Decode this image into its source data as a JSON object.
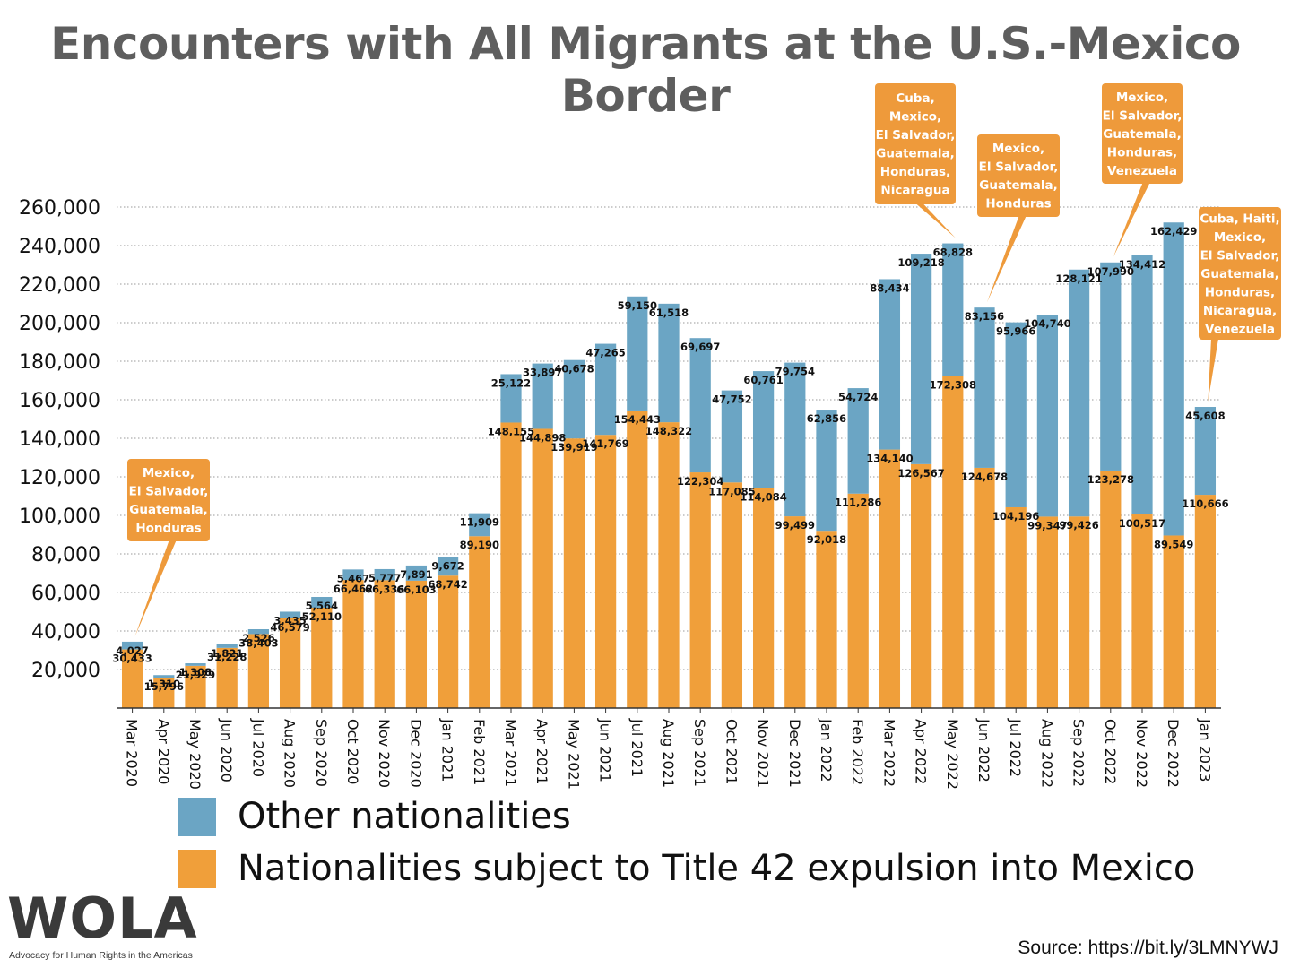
{
  "title": "Encounters with All Migrants at the U.S.-Mexico Border",
  "legend": {
    "other": "Other nationalities",
    "t42": "Nationalities subject to Title 42 expulsion into Mexico"
  },
  "logo": {
    "name": "WOLA",
    "tagline": "Advocacy for Human Rights in the Americas"
  },
  "source": "Source: https://bit.ly/3LMNYWJ",
  "colors": {
    "other": "#6ba5c4",
    "t42": "#f09f3a",
    "callout": "#ee9a3b",
    "axis": "#333333",
    "grid": "#999999"
  },
  "chart_data": {
    "type": "bar",
    "stacked": true,
    "ylim": [
      0,
      260000
    ],
    "yticks": [
      20000,
      40000,
      60000,
      80000,
      100000,
      120000,
      140000,
      160000,
      180000,
      200000,
      220000,
      240000,
      260000
    ],
    "ytick_labels": [
      "20,000",
      "40,000",
      "60,000",
      "80,000",
      "100,000",
      "120,000",
      "140,000",
      "160,000",
      "180,000",
      "200,000",
      "220,000",
      "240,000",
      "260,000"
    ],
    "grid": "horizontal dotted",
    "legend_position": "bottom",
    "categories": [
      "Mar 2020",
      "Apr 2020",
      "May 2020",
      "Jun 2020",
      "Jul 2020",
      "Aug 2020",
      "Sep 2020",
      "Oct 2020",
      "Nov 2020",
      "Dec 2020",
      "Jan 2021",
      "Feb 2021",
      "Mar 2021",
      "Apr 2021",
      "May 2021",
      "Jun 2021",
      "Jul 2021",
      "Aug 2021",
      "Sep 2021",
      "Oct 2021",
      "Nov 2021",
      "Dec 2021",
      "Jan 2022",
      "Feb 2022",
      "Mar 2022",
      "Apr 2022",
      "May 2022",
      "Jun 2022",
      "Jul 2022",
      "Aug 2022",
      "Sep 2022",
      "Oct 2022",
      "Nov 2022",
      "Dec 2022",
      "Jan 2023"
    ],
    "series": [
      {
        "name": "Nationalities subject to Title 42 expulsion into Mexico",
        "values": [
          30433,
          15796,
          21929,
          31228,
          38403,
          46579,
          52110,
          66462,
          66336,
          66103,
          68742,
          89190,
          148155,
          144898,
          139919,
          141769,
          154443,
          148322,
          122304,
          117085,
          114084,
          99499,
          92018,
          111286,
          134140,
          126567,
          172308,
          124678,
          104196,
          99347,
          99426,
          123278,
          100517,
          89549,
          110666
        ],
        "labels": [
          "30,433",
          "15,796",
          "21,929",
          "31,228",
          "38,403",
          "46,579",
          "52,110",
          "66,462",
          "66,336",
          "66,103",
          "68,742",
          "89,190",
          "148,155",
          "144,898",
          "139,919",
          "141,769",
          "154,443",
          "148,322",
          "122,304",
          "117,085",
          "114,084",
          "99,499",
          "92,018",
          "111,286",
          "134,140",
          "126,567",
          "172,308",
          "124,678",
          "104,196",
          "99,347",
          "99,426",
          "123,278",
          "100,517",
          "89,549",
          "110,666"
        ]
      },
      {
        "name": "Other nationalities",
        "values": [
          4027,
          1310,
          1308,
          1821,
          2526,
          3435,
          5564,
          5467,
          5777,
          7891,
          9672,
          11909,
          25122,
          33897,
          40678,
          47265,
          59150,
          61518,
          69697,
          47752,
          60761,
          79754,
          62856,
          54724,
          88434,
          109218,
          68828,
          83156,
          95966,
          104740,
          128121,
          107990,
          134412,
          162429,
          45608
        ],
        "labels": [
          "4,027",
          "1,310",
          "1,308",
          "1,821",
          "2,526",
          "3,435",
          "5,564",
          "5,467",
          "5,777",
          "7,891",
          "9,672",
          "11,909",
          "25,122",
          "33,897",
          "40,678",
          "47,265",
          "59,150",
          "61,518",
          "69,697",
          "47,752",
          "60,761",
          "79,754",
          "62,856",
          "54,724",
          "88,434",
          "109,218",
          "68,828",
          "83,156",
          "95,966",
          "104,740",
          "128,121",
          "107,990",
          "134,412",
          "162,429",
          "45,608"
        ]
      }
    ],
    "annotations": [
      {
        "category": "Mar 2020",
        "lines": [
          "Mexico,",
          "El Salvador,",
          "Guatemala,",
          "Honduras"
        ]
      },
      {
        "category": "May 2022",
        "lines": [
          "Cuba,",
          "Mexico,",
          "El Salvador,",
          "Guatemala,",
          "Honduras,",
          "Nicaragua"
        ]
      },
      {
        "category": "Jun 2022",
        "lines": [
          "Mexico,",
          "El Salvador,",
          "Guatemala,",
          "Honduras"
        ]
      },
      {
        "category": "Oct 2022",
        "lines": [
          "Mexico,",
          "El Salvador,",
          "Guatemala,",
          "Honduras,",
          "Venezuela"
        ]
      },
      {
        "category": "Jan 2023",
        "lines": [
          "Cuba, Haiti,",
          "Mexico,",
          "El Salvador,",
          "Guatemala,",
          "Honduras,",
          "Nicaragua,",
          "Venezuela"
        ]
      }
    ]
  }
}
